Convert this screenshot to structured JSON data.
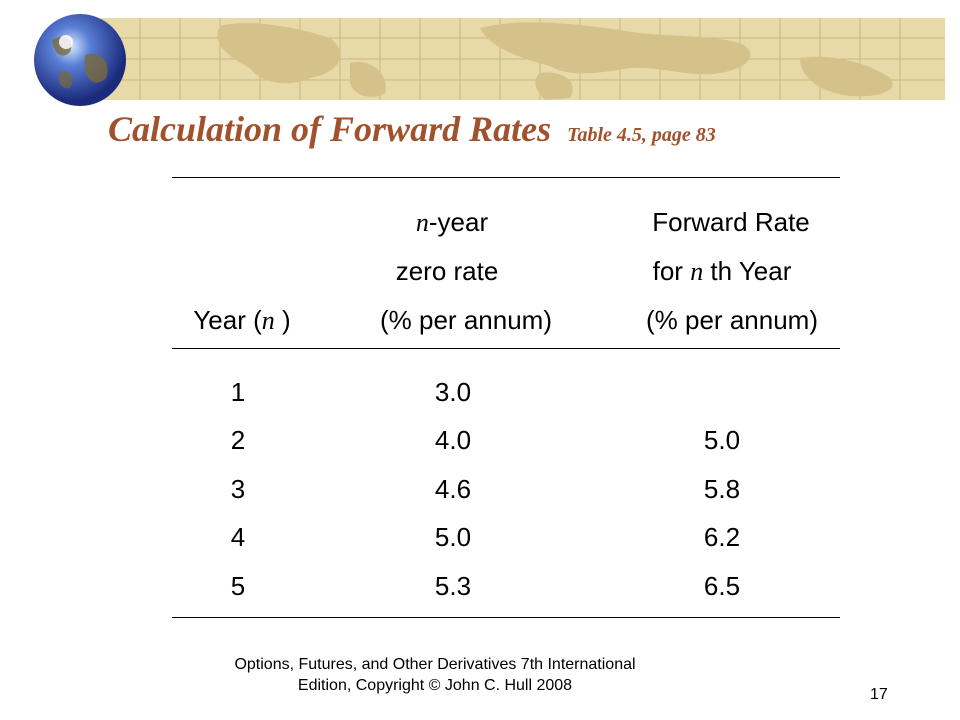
{
  "title": {
    "main": "Calculation of Forward Rates",
    "sub": "Table 4.5, page 83"
  },
  "table": {
    "headers": {
      "year": {
        "pre": "Year (",
        "var": "n",
        "post": " )"
      },
      "zero": {
        "line1_var": "n",
        "line1_post": "-year",
        "line2": "zero rate",
        "line3": "(% per annum)"
      },
      "forward": {
        "line1": "Forward Rate",
        "line2_pre": "for ",
        "line2_var": "n",
        "line2_post": " th Year",
        "line3": "(% per annum)"
      }
    },
    "rows": [
      {
        "year": "1",
        "zero": "3.0",
        "forward": ""
      },
      {
        "year": "2",
        "zero": "4.0",
        "forward": "5.0"
      },
      {
        "year": "3",
        "zero": "4.6",
        "forward": "5.8"
      },
      {
        "year": "4",
        "zero": "5.0",
        "forward": "6.2"
      },
      {
        "year": "5",
        "zero": "5.3",
        "forward": "6.5"
      }
    ]
  },
  "footer": {
    "line1": "Options, Futures, and Other Derivatives 7th International",
    "line2": "Edition, Copyright © John C. Hull 2008"
  },
  "page_number": "17",
  "colors": {
    "title": "#a0522d",
    "banner": "#e7d9a8"
  }
}
